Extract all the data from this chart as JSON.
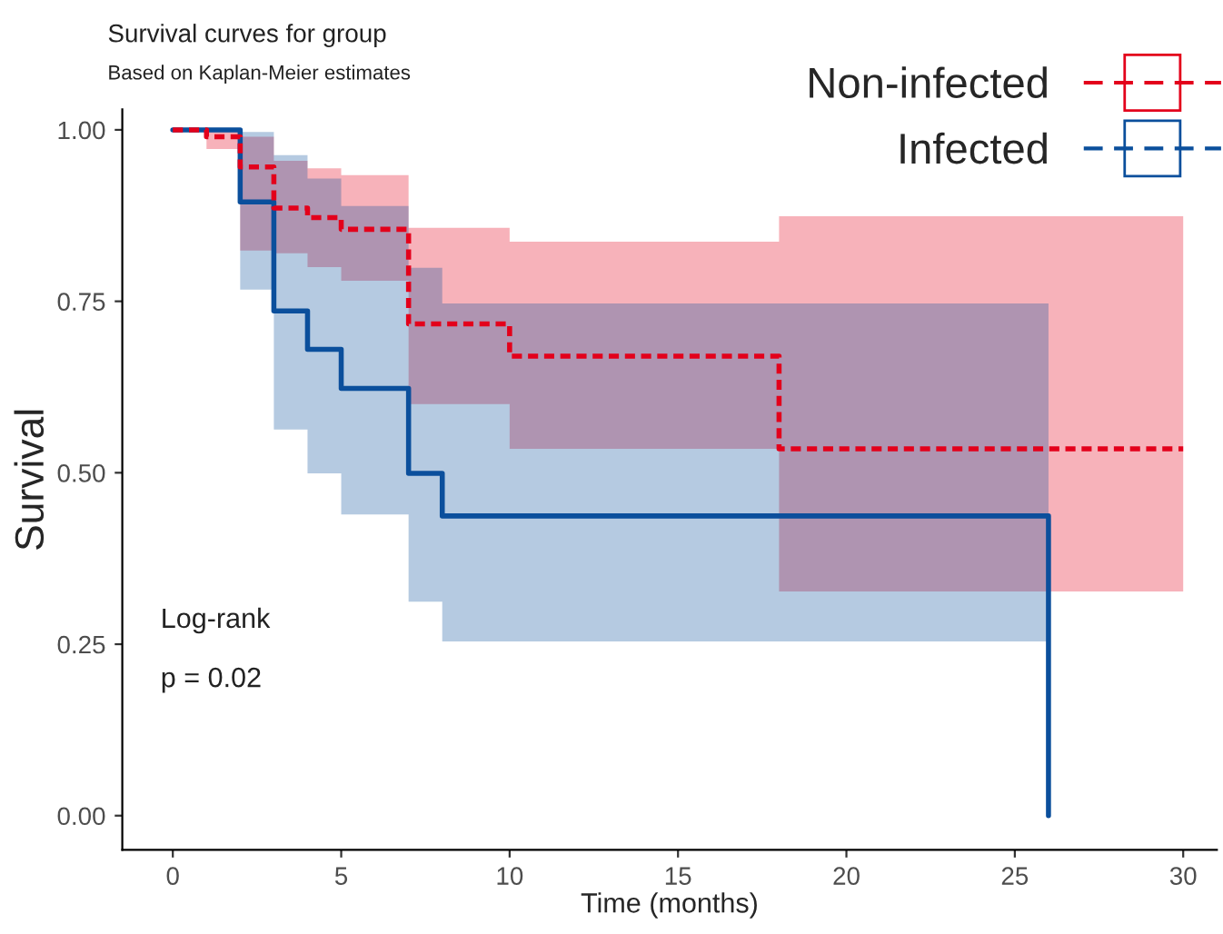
{
  "chart_data": {
    "type": "step",
    "title": "Survival curves for group",
    "subtitle": "Based on Kaplan-Meier estimates",
    "xlabel": "Time (months)",
    "ylabel": "Survival",
    "xlim": [
      -1.5,
      31
    ],
    "xticks": [
      0,
      5,
      10,
      15,
      20,
      25,
      30
    ],
    "ylim": [
      -0.05,
      1.03
    ],
    "yticks": [
      {
        "value": 0,
        "label": "0.00"
      },
      {
        "value": 0.25,
        "label": "0.25"
      },
      {
        "value": 0.5,
        "label": "0.50"
      },
      {
        "value": 0.75,
        "label": "0.75"
      },
      {
        "value": 1,
        "label": "1.00"
      }
    ],
    "grid": false,
    "legend": "top right",
    "marker": "none",
    "annotations": [
      "Log-rank",
      "p = 0.02"
    ],
    "series": [
      {
        "name": "Non-infected",
        "color": "#e3001b",
        "line_style": "dashed",
        "x": [
          0,
          1,
          2,
          3,
          4,
          5,
          7,
          10,
          18,
          30
        ],
        "values": [
          1,
          0.99,
          0.946,
          0.886,
          0.872,
          0.855,
          0.717,
          0.67,
          0.535,
          0.535
        ],
        "lower": [
          1,
          0.972,
          0.824,
          0.82,
          0.8,
          0.78,
          0.6,
          0.535,
          0.327,
          0.327
        ],
        "upper": [
          1,
          1,
          0.99,
          0.955,
          0.944,
          0.934,
          0.857,
          0.837,
          0.874,
          0.874
        ]
      },
      {
        "name": "Infected",
        "color": "#0b4f9c",
        "line_style": "solid",
        "x": [
          0,
          2,
          3,
          4,
          5,
          7,
          8,
          26
        ],
        "values": [
          1,
          0.895,
          0.736,
          0.68,
          0.623,
          0.499,
          0.437,
          0
        ],
        "lower": [
          1,
          0.767,
          0.563,
          0.499,
          0.439,
          0.312,
          0.254,
          0.254
        ],
        "upper": [
          1,
          0.997,
          0.963,
          0.929,
          0.889,
          0.799,
          0.747,
          0.747
        ]
      }
    ]
  }
}
